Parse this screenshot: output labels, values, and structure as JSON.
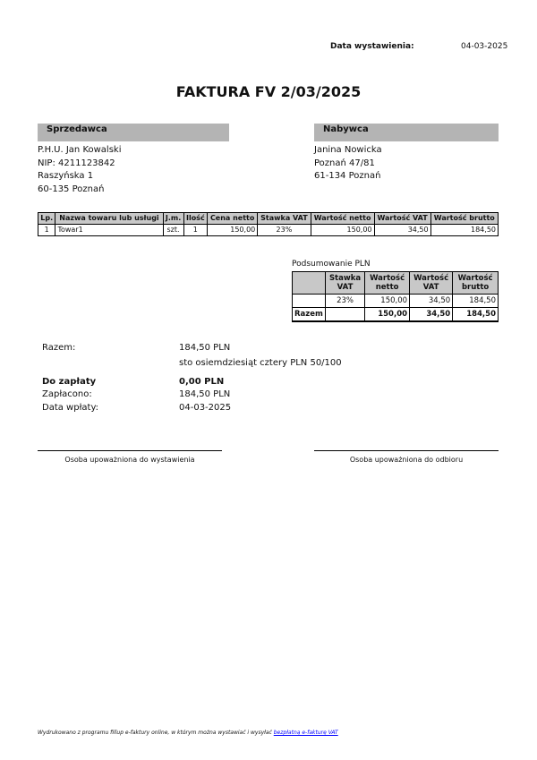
{
  "issue": {
    "label": "Data wystawienia:",
    "date": "04-03-2025"
  },
  "title": "FAKTURA FV 2/03/2025",
  "seller": {
    "header": "Sprzedawca",
    "lines": [
      "P.H.U. Jan Kowalski",
      "NIP: 4211123842",
      "Raszyńska 1",
      "60-135 Poznań"
    ]
  },
  "buyer": {
    "header": "Nabywca",
    "lines": [
      "Janina Nowicka",
      "Poznań 47/81",
      "61-134 Poznań"
    ]
  },
  "items": {
    "columns": [
      "Lp.",
      "Nazwa towaru lub usługi",
      "J.m.",
      "Ilość",
      "Cena netto",
      "Stawka VAT",
      "Wartość netto",
      "Wartość VAT",
      "Wartość brutto"
    ],
    "rows": [
      [
        "1",
        "Towar1",
        "szt.",
        "1",
        "150,00",
        "23%",
        "150,00",
        "34,50",
        "184,50"
      ]
    ]
  },
  "summary": {
    "title": "Podsumowanie PLN",
    "columns": [
      "",
      "Stawka VAT",
      "Wartość netto",
      "Wartość VAT",
      "Wartość brutto"
    ],
    "rows": [
      [
        "",
        "23%",
        "150,00",
        "34,50",
        "184,50"
      ]
    ],
    "total": [
      "Razem",
      "",
      "150,00",
      "34,50",
      "184,50"
    ]
  },
  "totals": {
    "razem_label": "Razem:",
    "razem_value": "184,50 PLN",
    "words": "sto osiemdziesiąt cztery PLN 50/100",
    "due_label": "Do zapłaty",
    "due_value": "0,00 PLN",
    "paid_label": "Zapłacono:",
    "paid_value": "184,50 PLN",
    "paydate_label": "Data wpłaty:",
    "paydate_value": "04-03-2025"
  },
  "signatures": {
    "issuer": "Osoba upoważniona do wystawienia",
    "receiver": "Osoba upoważniona do odbioru"
  },
  "footer": {
    "text": "Wydrukowano z programu fillup e-faktury online, w którym można wystawiać i wysyłać ",
    "link": "bezpłatną e-fakturę VAT"
  }
}
